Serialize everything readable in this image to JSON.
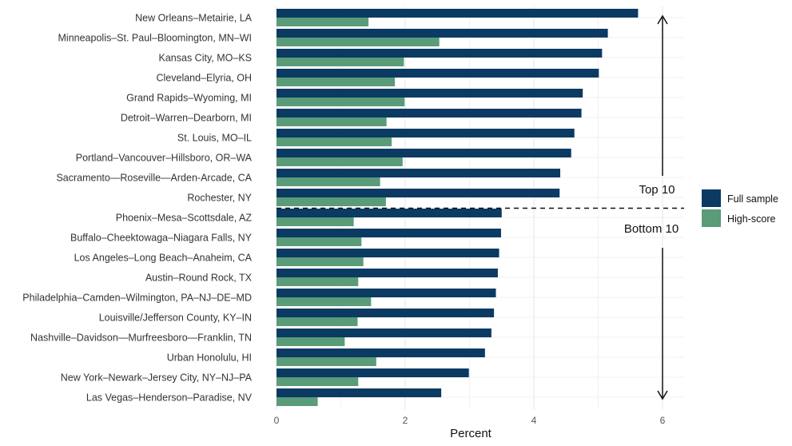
{
  "chart_data": {
    "type": "bar",
    "orientation": "horizontal",
    "title": "",
    "xlabel": "Percent",
    "ylabel": "",
    "xlim": [
      0,
      6.3
    ],
    "xticks": [
      0,
      2,
      4,
      6
    ],
    "grid": true,
    "categories": [
      "New Orleans–Metairie, LA",
      "Minneapolis–St. Paul–Bloomington, MN–WI",
      "Kansas City, MO–KS",
      "Cleveland–Elyria, OH",
      "Grand Rapids–Wyoming, MI",
      "Detroit–Warren–Dearborn, MI",
      "St. Louis, MO–IL",
      "Portland–Vancouver–Hillsboro, OR–WA",
      "Sacramento—Roseville—Arden-Arcade, CA",
      "Rochester, NY",
      "Phoenix–Mesa–Scottsdale, AZ",
      "Buffalo–Cheektowaga–Niagara Falls, NY",
      "Los Angeles–Long Beach–Anaheim, CA",
      "Austin–Round Rock, TX",
      "Philadelphia–Camden–Wilmington, PA–NJ–DE–MD",
      "Louisville/Jefferson County, KY–IN",
      "Nashville–Davidson—Murfreesboro—Franklin, TN",
      "Urban Honolulu, HI",
      "New York–Newark–Jersey City, NY–NJ–PA",
      "Las Vegas–Henderson–Paradise, NV"
    ],
    "series": [
      {
        "name": "Full sample",
        "color": "#0b3a63",
        "values": [
          5.62,
          5.15,
          5.06,
          5.01,
          4.76,
          4.74,
          4.63,
          4.58,
          4.41,
          4.4,
          3.5,
          3.49,
          3.46,
          3.44,
          3.41,
          3.38,
          3.34,
          3.24,
          2.99,
          2.56
        ]
      },
      {
        "name": "High-score",
        "color": "#5a9b78",
        "values": [
          1.43,
          2.53,
          1.98,
          1.84,
          1.99,
          1.71,
          1.79,
          1.96,
          1.61,
          1.7,
          1.2,
          1.32,
          1.35,
          1.27,
          1.47,
          1.26,
          1.06,
          1.55,
          1.27,
          0.64
        ]
      }
    ],
    "annotations": {
      "top_label": "Top 10",
      "bottom_label": "Bottom 10",
      "split_after_index": 9
    },
    "legend_position": "right"
  }
}
